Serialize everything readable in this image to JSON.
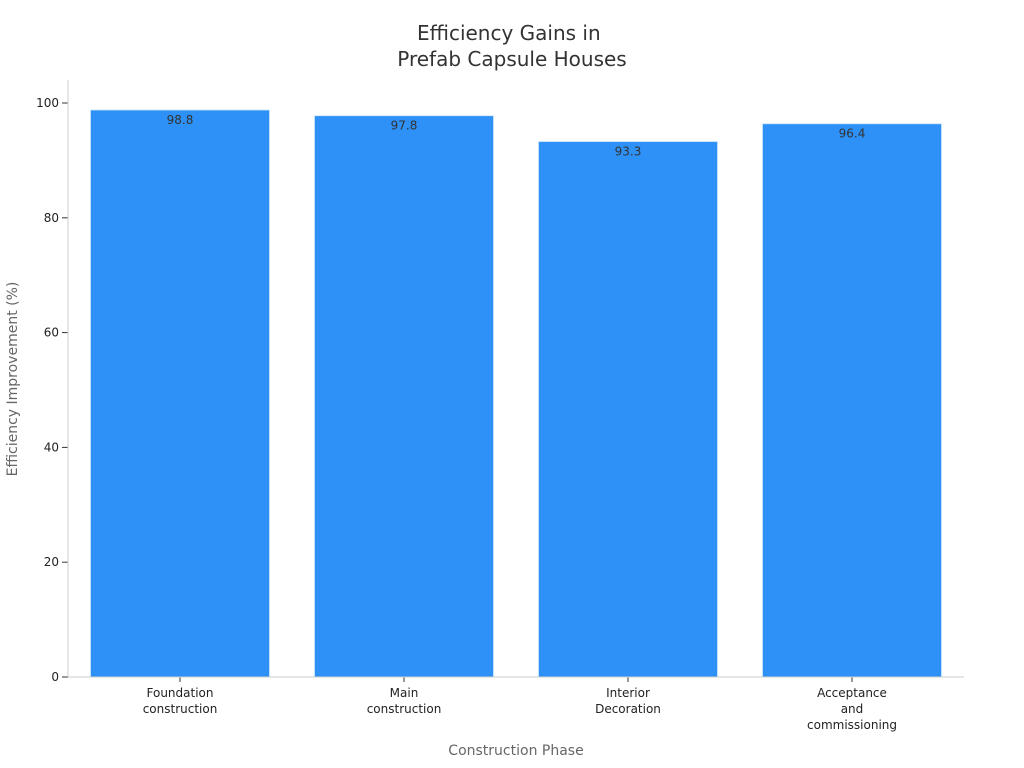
{
  "chart_data": {
    "type": "bar",
    "title": [
      "Efficiency Gains in",
      "Prefab Capsule Houses"
    ],
    "xlabel": "Construction Phase",
    "ylabel": "Efficiency Improvement (%)",
    "categories": [
      [
        "Foundation",
        "construction"
      ],
      [
        "Main",
        "construction"
      ],
      [
        "Interior",
        "Decoration"
      ],
      [
        "Acceptance",
        "and",
        "commissioning"
      ]
    ],
    "values": [
      98.8,
      97.8,
      93.3,
      96.4
    ],
    "value_labels": [
      "98.8",
      "97.8",
      "93.3",
      "96.4"
    ],
    "ylim": [
      0,
      100
    ],
    "yticks": [
      0,
      20,
      40,
      60,
      80,
      100
    ],
    "ytick_labels": [
      "0",
      "20",
      "40",
      "60",
      "80",
      "100"
    ],
    "bar_color": "#2d91f7",
    "grid": false,
    "legend": "none"
  }
}
